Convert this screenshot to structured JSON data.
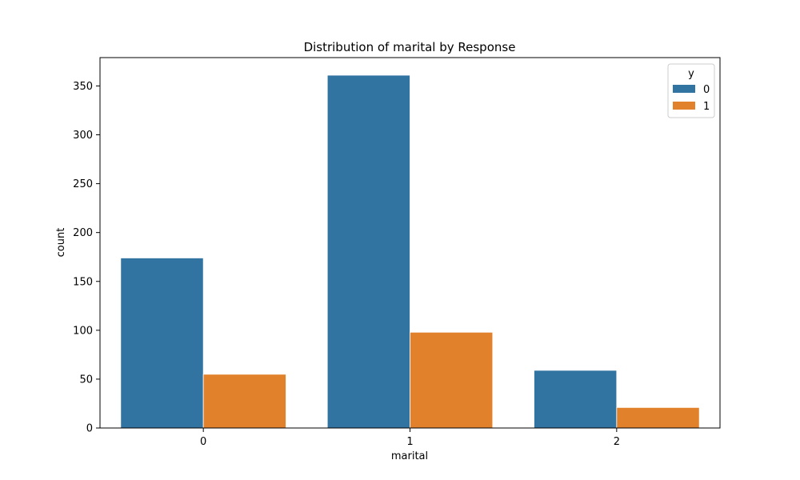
{
  "chart_data": {
    "type": "bar",
    "title": "Distribution of marital by Response",
    "xlabel": "marital",
    "ylabel": "count",
    "categories": [
      "0",
      "1",
      "2"
    ],
    "series": [
      {
        "name": "0",
        "color": "#3274a1",
        "values": [
          174,
          361,
          59
        ]
      },
      {
        "name": "1",
        "color": "#e1812c",
        "values": [
          55,
          98,
          21
        ]
      }
    ],
    "ylim": [
      0,
      379
    ],
    "yticks": [
      0,
      50,
      100,
      150,
      200,
      250,
      300,
      350
    ],
    "legend": {
      "title": "y",
      "placement": "top-right"
    },
    "grid": false
  }
}
